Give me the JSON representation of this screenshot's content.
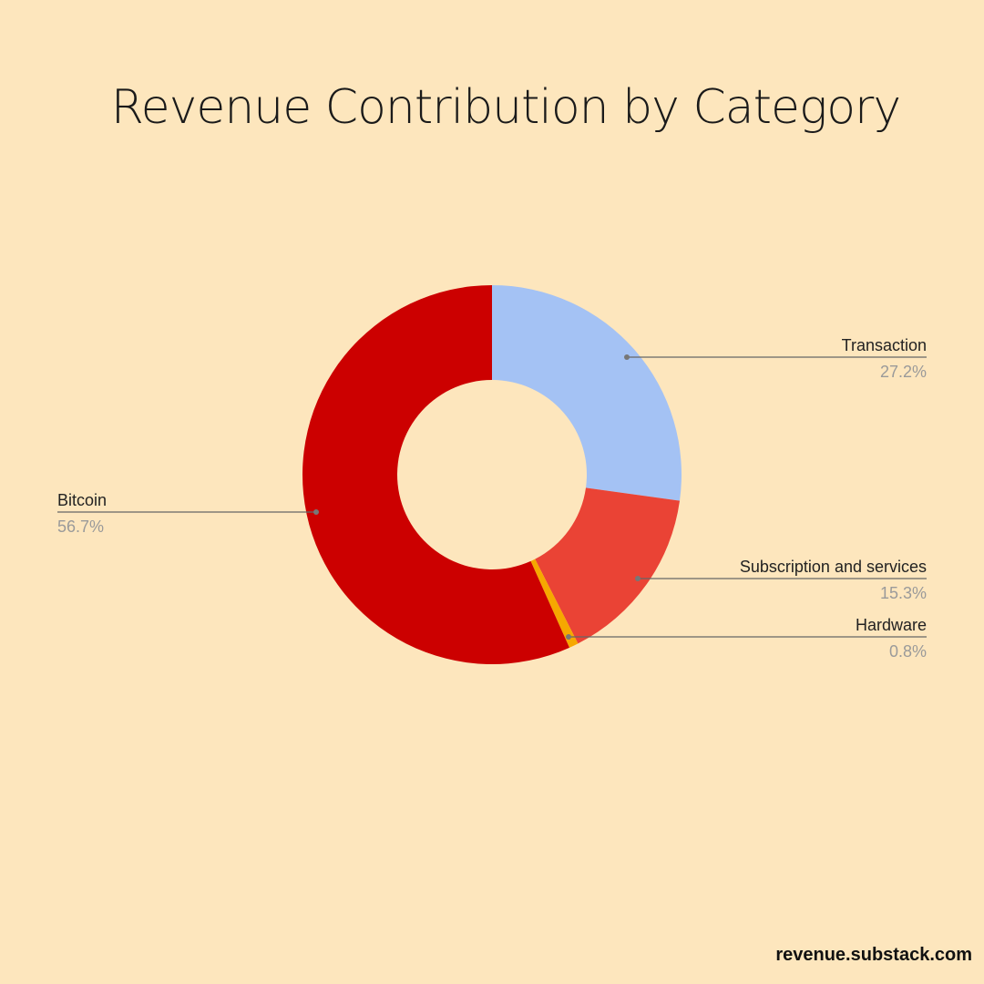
{
  "title": "Revenue Contribution by Category",
  "footer": "revenue.substack.com",
  "chart_data": {
    "type": "pie",
    "style": "donut",
    "title": "Revenue Contribution by Category",
    "slices": [
      {
        "label": "Transaction",
        "value": 27.2,
        "value_label": "27.2%",
        "color": "#a4c2f4"
      },
      {
        "label": "Subscription and services",
        "value": 15.3,
        "value_label": "15.3%",
        "color": "#ea4335"
      },
      {
        "label": "Hardware",
        "value": 0.8,
        "value_label": "0.8%",
        "color": "#f6a800"
      },
      {
        "label": "Bitcoin",
        "value": 56.7,
        "value_label": "56.7%",
        "color": "#cc0000"
      }
    ],
    "start": "top",
    "direction": "clockwise",
    "legend": "none"
  }
}
